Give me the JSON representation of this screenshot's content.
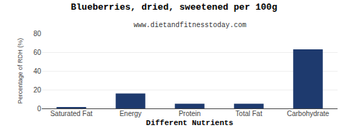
{
  "chart_data": {
    "type": "bar",
    "title": "Blueberries, dried, sweetened per 100g",
    "subtitle": "www.dietandfitnesstoday.com",
    "xlabel": "Different Nutrients",
    "ylabel": "Percentage of RDH (%)",
    "categories": [
      "Saturated Fat",
      "Energy",
      "Protein",
      "Total Fat",
      "Carbohydrate"
    ],
    "values": [
      1.0,
      16.0,
      5.0,
      5.0,
      63.0
    ],
    "color": "#1e3a6e",
    "ylim": [
      0,
      80
    ],
    "yticks": [
      0,
      20,
      40,
      60,
      80
    ],
    "grid": true
  }
}
